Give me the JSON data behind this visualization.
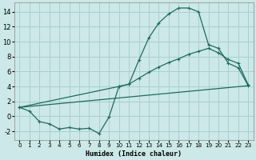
{
  "title": "",
  "xlabel": "Humidex (Indice chaleur)",
  "bg_color": "#cce8e8",
  "grid_color": "#aacfcf",
  "line_color": "#1e6b5e",
  "xlim": [
    -0.5,
    23.5
  ],
  "ylim": [
    -3.2,
    15.2
  ],
  "xticks": [
    0,
    1,
    2,
    3,
    4,
    5,
    6,
    7,
    8,
    9,
    10,
    11,
    12,
    13,
    14,
    15,
    16,
    17,
    18,
    19,
    20,
    21,
    22,
    23
  ],
  "yticks": [
    -2,
    0,
    2,
    4,
    6,
    8,
    10,
    12,
    14
  ],
  "line1_x": [
    0,
    1,
    2,
    3,
    4,
    5,
    6,
    7,
    8,
    9,
    10,
    11,
    12,
    13,
    14,
    15,
    16,
    17,
    18,
    19,
    20,
    21,
    22,
    23
  ],
  "line1_y": [
    1.2,
    0.7,
    -0.7,
    -1.0,
    -1.7,
    -1.5,
    -1.7,
    -1.6,
    -2.3,
    -0.1,
    4.0,
    4.3,
    7.5,
    10.5,
    12.5,
    13.7,
    14.5,
    14.5,
    14.0,
    9.6,
    9.1,
    7.1,
    6.5,
    4.1
  ],
  "line2_x": [
    0,
    10,
    11,
    12,
    13,
    14,
    15,
    16,
    17,
    18,
    19,
    20,
    21,
    22,
    23
  ],
  "line2_y": [
    1.2,
    4.0,
    4.3,
    5.1,
    5.9,
    6.6,
    7.2,
    7.7,
    8.3,
    8.7,
    9.1,
    8.5,
    7.6,
    7.1,
    4.2
  ],
  "line3_x": [
    0,
    23
  ],
  "line3_y": [
    1.2,
    4.1
  ]
}
